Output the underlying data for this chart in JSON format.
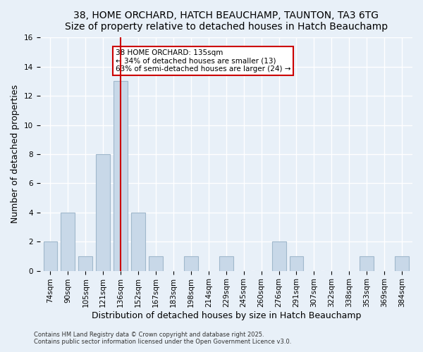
{
  "title1": "38, HOME ORCHARD, HATCH BEAUCHAMP, TAUNTON, TA3 6TG",
  "title2": "Size of property relative to detached houses in Hatch Beauchamp",
  "xlabel": "Distribution of detached houses by size in Hatch Beauchamp",
  "ylabel": "Number of detached properties",
  "categories": [
    "74sqm",
    "90sqm",
    "105sqm",
    "121sqm",
    "136sqm",
    "152sqm",
    "167sqm",
    "183sqm",
    "198sqm",
    "214sqm",
    "229sqm",
    "245sqm",
    "260sqm",
    "276sqm",
    "291sqm",
    "307sqm",
    "322sqm",
    "338sqm",
    "353sqm",
    "369sqm",
    "384sqm"
  ],
  "values": [
    2,
    4,
    1,
    8,
    13,
    4,
    1,
    0,
    1,
    0,
    1,
    0,
    0,
    2,
    1,
    0,
    0,
    0,
    1,
    0,
    1
  ],
  "bar_color": "#c8d8e8",
  "bar_edge_color": "#a0b8cc",
  "vline_x_index": 4,
  "vline_color": "#cc0000",
  "annotation_text": "38 HOME ORCHARD: 135sqm\n← 34% of detached houses are smaller (13)\n63% of semi-detached houses are larger (24) →",
  "annotation_box_color": "#ffffff",
  "annotation_box_edge_color": "#cc0000",
  "ylim": [
    0,
    16
  ],
  "yticks": [
    0,
    2,
    4,
    6,
    8,
    10,
    12,
    14,
    16
  ],
  "background_color": "#e8f0f8",
  "footer1": "Contains HM Land Registry data © Crown copyright and database right 2025.",
  "footer2": "Contains public sector information licensed under the Open Government Licence v3.0.",
  "title_fontsize": 10,
  "label_fontsize": 9,
  "tick_fontsize": 7.5
}
